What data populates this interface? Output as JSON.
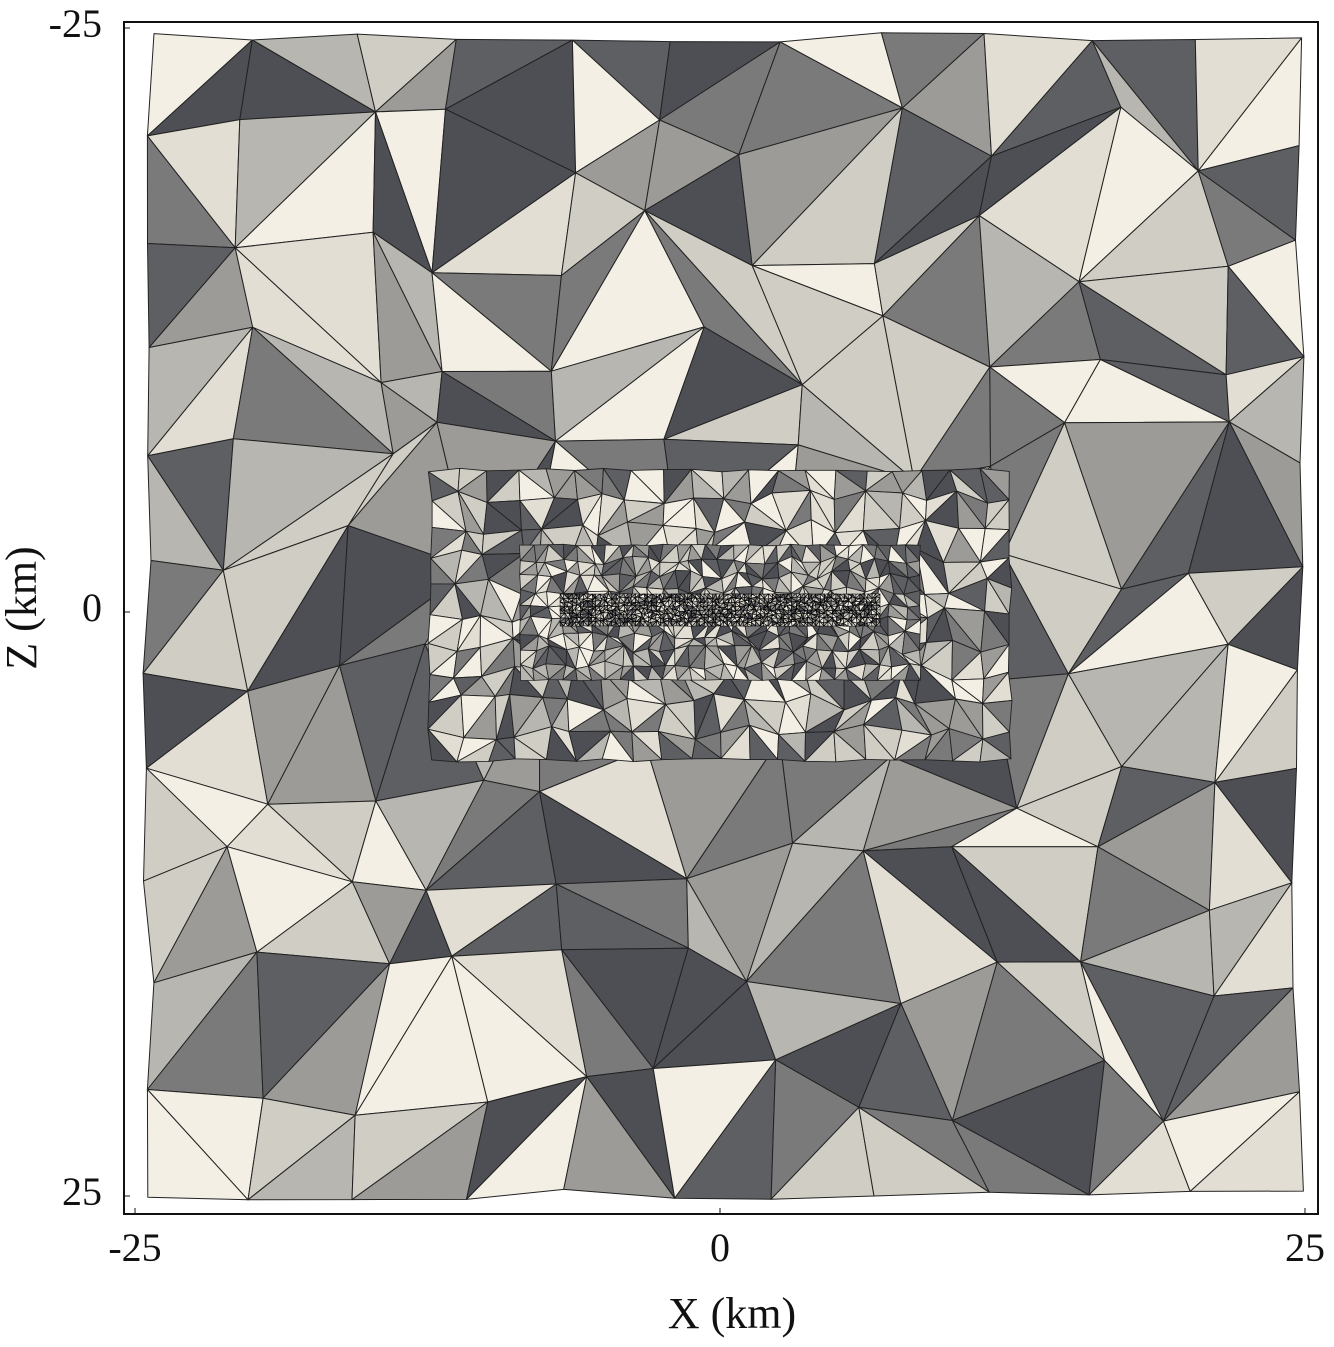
{
  "chart_data": {
    "type": "mesh",
    "xlabel": "X (km)",
    "ylabel": "Z (km)",
    "xlim": [
      -25,
      25
    ],
    "ylim": [
      -25,
      25
    ],
    "y_inverted": true,
    "xticks": [
      -25,
      0,
      25
    ],
    "yticks": [
      -25,
      0,
      25
    ]
  }
}
